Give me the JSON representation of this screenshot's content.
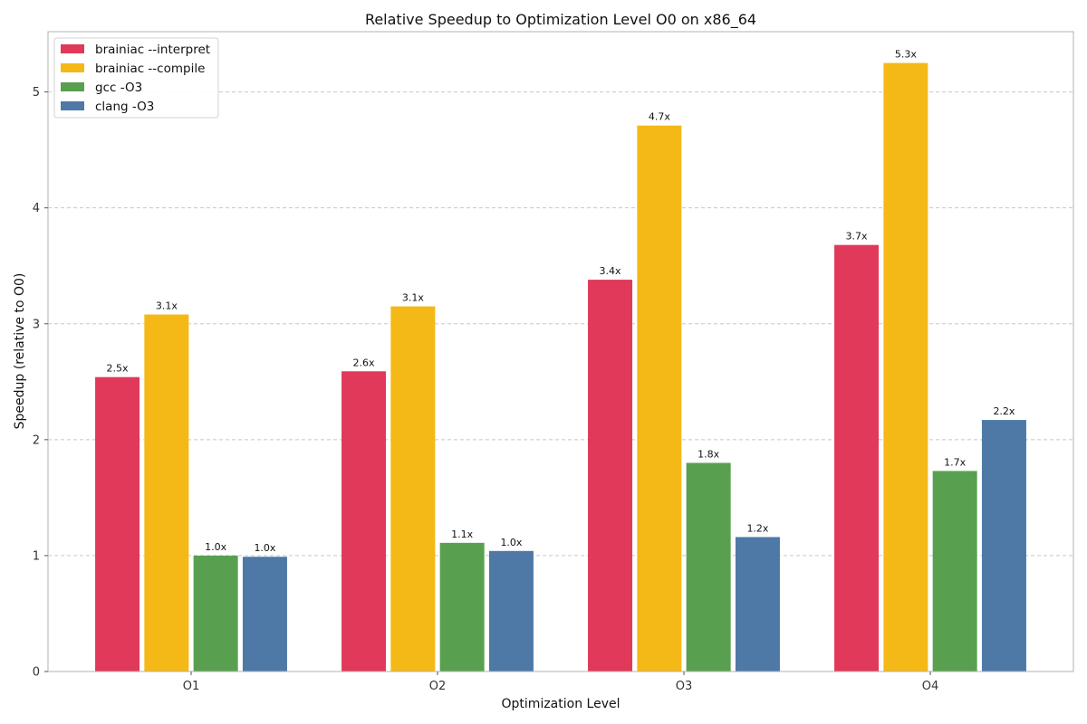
{
  "chart_data": {
    "type": "bar",
    "title": "Relative Speedup to Optimization Level O0 on x86_64",
    "xlabel": "Optimization Level",
    "ylabel": "Speedup (relative to O0)",
    "categories": [
      "O1",
      "O2",
      "O3",
      "O4"
    ],
    "series": [
      {
        "name": "brainiac --interpret",
        "color": "#e0395a",
        "values": [
          2.54,
          2.59,
          3.38,
          3.68
        ],
        "labels": [
          "2.5x",
          "2.6x",
          "3.4x",
          "3.7x"
        ]
      },
      {
        "name": "brainiac --compile",
        "color": "#f4b916",
        "values": [
          3.08,
          3.15,
          4.71,
          5.25
        ],
        "labels": [
          "3.1x",
          "3.1x",
          "4.7x",
          "5.3x"
        ]
      },
      {
        "name": "gcc -O3",
        "color": "#58a04f",
        "values": [
          1.0,
          1.11,
          1.8,
          1.73
        ],
        "labels": [
          "1.0x",
          "1.1x",
          "1.8x",
          "1.7x"
        ]
      },
      {
        "name": "clang -O3",
        "color": "#4e79a7",
        "values": [
          0.99,
          1.04,
          1.16,
          2.17
        ],
        "labels": [
          "1.0x",
          "1.0x",
          "1.2x",
          "2.2x"
        ]
      }
    ],
    "ylim": [
      0,
      5.52
    ],
    "yticks": [
      0,
      1,
      2,
      3,
      4,
      5
    ],
    "grid": true,
    "legend_position": "top-left"
  }
}
